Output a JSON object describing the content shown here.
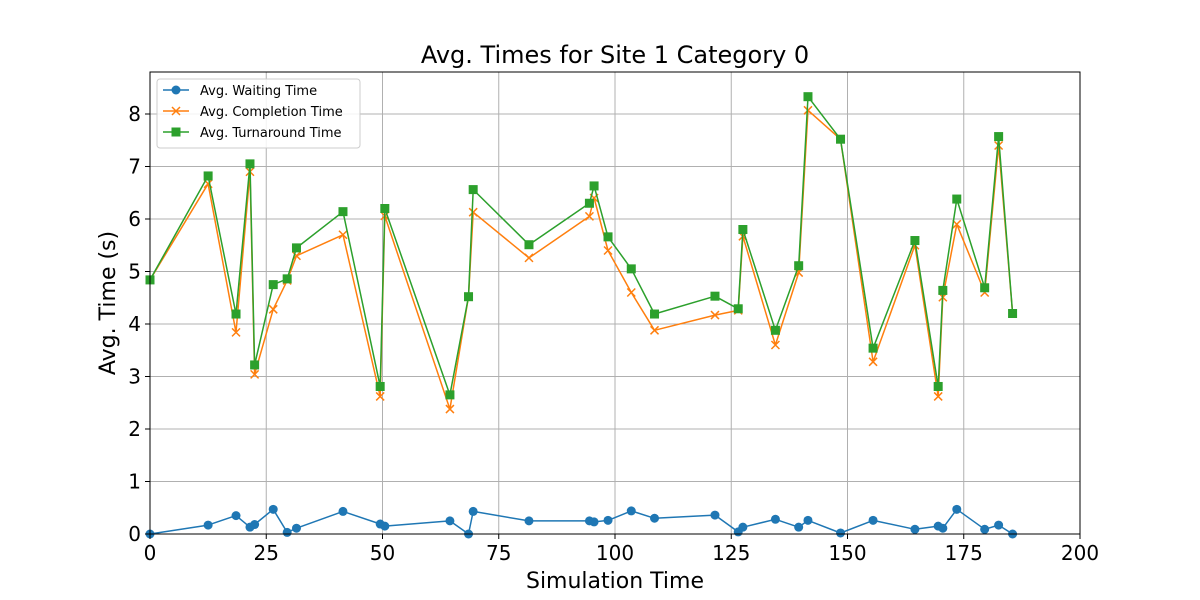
{
  "chart_data": {
    "type": "line",
    "title": "Avg. Times for Site 1 Category 0",
    "xlabel": "Simulation Time",
    "ylabel": "Avg. Time (s)",
    "xlim": [
      0,
      200
    ],
    "ylim": [
      0,
      8.8
    ],
    "xticks": [
      0,
      25,
      50,
      75,
      100,
      125,
      150,
      175,
      200
    ],
    "yticks": [
      0,
      1,
      2,
      3,
      4,
      5,
      6,
      7,
      8
    ],
    "grid": true,
    "legend_position": "top-left",
    "x": [
      0,
      12.5,
      18.5,
      21.5,
      22.5,
      26.5,
      29.5,
      31.5,
      41.5,
      49.5,
      50.5,
      64.5,
      68.5,
      69.5,
      81.5,
      94.5,
      95.5,
      98.5,
      103.5,
      108.5,
      121.5,
      126.5,
      127.5,
      134.5,
      139.5,
      141.5,
      148.5,
      155.5,
      164.5,
      169.5,
      170.5,
      173.5,
      179.5,
      182.5,
      185.5
    ],
    "series": [
      {
        "name": "Avg. Waiting Time",
        "color": "#1f77b4",
        "marker": "circle",
        "values": [
          0,
          0.17,
          0.35,
          0.13,
          0.18,
          0.47,
          0.03,
          0.11,
          0.43,
          0.19,
          0.15,
          0.25,
          0.0,
          0.43,
          0.25,
          0.25,
          0.23,
          0.26,
          0.44,
          0.3,
          0.36,
          0.04,
          0.13,
          0.28,
          0.13,
          0.26,
          0.02,
          0.26,
          0.09,
          0.15,
          0.11,
          0.47,
          0.09,
          0.17,
          0.0
        ]
      },
      {
        "name": "Avg. Completion Time",
        "color": "#ff7f0e",
        "marker": "x",
        "values": [
          4.84,
          6.67,
          3.84,
          6.9,
          3.04,
          4.28,
          4.83,
          5.3,
          5.7,
          2.62,
          6.06,
          2.38,
          4.52,
          6.13,
          5.26,
          6.05,
          6.4,
          5.4,
          4.6,
          3.88,
          4.17,
          4.26,
          5.67,
          3.6,
          4.98,
          8.07,
          7.52,
          3.28,
          5.5,
          2.62,
          4.51,
          5.9,
          4.6,
          7.4,
          4.2
        ]
      },
      {
        "name": "Avg. Turnaround Time",
        "color": "#2ca02c",
        "marker": "square",
        "values": [
          4.84,
          6.82,
          4.19,
          7.05,
          3.22,
          4.75,
          4.86,
          5.45,
          6.14,
          2.81,
          6.2,
          2.65,
          4.52,
          6.56,
          5.51,
          6.3,
          6.63,
          5.66,
          5.05,
          4.19,
          4.53,
          4.29,
          5.8,
          3.88,
          5.11,
          8.33,
          7.52,
          3.54,
          5.59,
          2.81,
          4.64,
          6.38,
          4.69,
          7.57,
          4.2
        ]
      }
    ]
  }
}
